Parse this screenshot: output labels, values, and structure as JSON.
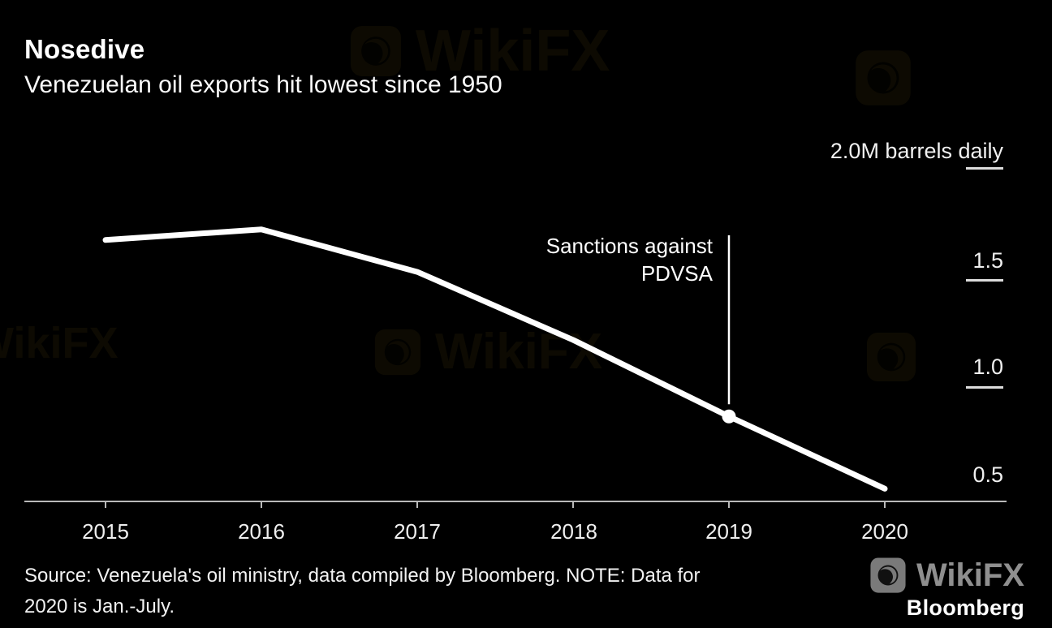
{
  "header": {
    "title": "Nosedive",
    "subtitle": "Venezuelan oil exports hit lowest since 1950"
  },
  "chart_data": {
    "type": "line",
    "title": "Nosedive",
    "subtitle": "Venezuelan oil exports hit lowest since 1950",
    "categories": [
      "2015",
      "2016",
      "2017",
      "2018",
      "2019",
      "2020"
    ],
    "x": [
      2015,
      2016,
      2017,
      2018,
      2019,
      2020
    ],
    "series": [
      {
        "name": "Venezuelan oil exports (M barrels daily)",
        "values": [
          1.6,
          1.65,
          1.45,
          1.13,
          0.77,
          0.43
        ]
      }
    ],
    "ylim": [
      0.3,
      2.0
    ],
    "ylabel": "M barrels daily",
    "yticks": [
      {
        "value": 2.0,
        "label": "2.0M barrels daily"
      },
      {
        "value": 1.5,
        "label": "1.5"
      },
      {
        "value": 1.0,
        "label": "1.0"
      },
      {
        "value": 0.5,
        "label": "0.5"
      }
    ],
    "grid": "off",
    "legend": "none",
    "annotation": {
      "line1": "Sanctions against",
      "line2": "PDVSA",
      "x": 2019,
      "marker_value": 0.77
    }
  },
  "colors": {
    "background": "#000000",
    "line": "#ffffff",
    "axis": "#b9b9b9",
    "watermark_gray": "#8f8f8f"
  },
  "footer": {
    "source_line1": "Source: Venezuela's oil ministry, data compiled by Bloomberg. NOTE: Data for",
    "source_line2": "2020 is Jan.-July.",
    "brand": "Bloomberg"
  },
  "watermark": {
    "label": "WikiFX"
  }
}
